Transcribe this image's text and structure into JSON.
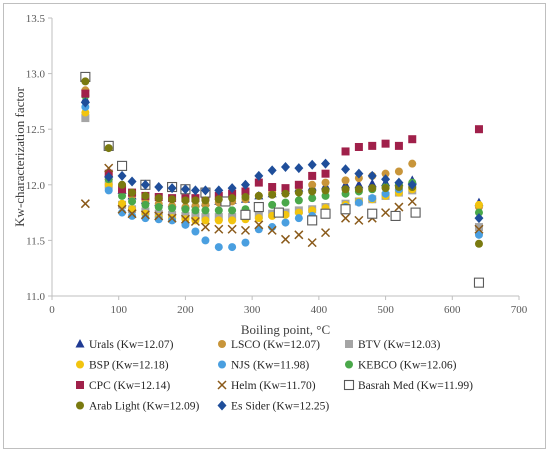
{
  "chart_data": {
    "type": "scatter",
    "title": "",
    "xlabel": "Boiling point, °C",
    "ylabel": "Kw-characterization factor",
    "xlim": [
      0,
      700
    ],
    "ylim": [
      11.0,
      13.5
    ],
    "x_ticks": [
      "0",
      "100",
      "200",
      "300",
      "400",
      "500",
      "600",
      "700"
    ],
    "y_ticks": [
      "11.0",
      "11.5",
      "12.0",
      "12.5",
      "13.0",
      "13.5"
    ],
    "grid": false,
    "legend_position": "bottom",
    "series": [
      {
        "name": "Urals (Kw=12.07)",
        "marker": "triangle",
        "color": "#1f3a93",
        "x": [
          50,
          85,
          105,
          120,
          140,
          160,
          180,
          200,
          215,
          230,
          250,
          270,
          290,
          310,
          330,
          350,
          370,
          390,
          410,
          440,
          460,
          480,
          500,
          520,
          540,
          640
        ],
        "y": [
          12.77,
          12.1,
          11.95,
          11.9,
          11.86,
          11.84,
          11.83,
          11.82,
          11.83,
          11.84,
          11.85,
          11.86,
          11.87,
          11.9,
          11.92,
          11.95,
          11.97,
          11.98,
          11.99,
          12.0,
          12.0,
          12.01,
          12.02,
          12.02,
          12.04,
          11.84
        ]
      },
      {
        "name": "LSCO (Kw=12.07)",
        "marker": "circle",
        "color": "#c8953a",
        "x": [
          50,
          85,
          105,
          120,
          140,
          160,
          180,
          200,
          215,
          230,
          250,
          270,
          290,
          310,
          330,
          350,
          370,
          390,
          410,
          440,
          460,
          480,
          500,
          520,
          540,
          640
        ],
        "y": [
          12.85,
          12.05,
          11.95,
          11.9,
          11.86,
          11.83,
          11.81,
          11.8,
          11.81,
          11.82,
          11.84,
          11.85,
          11.87,
          11.9,
          11.93,
          11.95,
          11.98,
          12.0,
          12.02,
          12.04,
          12.06,
          12.08,
          12.1,
          12.12,
          12.19,
          11.8
        ]
      },
      {
        "name": "BTV (Kw=12.03)",
        "marker": "square",
        "color": "#a5a5a5",
        "x": [
          50,
          85,
          105,
          120,
          140,
          160,
          180,
          200,
          215,
          230,
          250,
          270,
          290,
          310,
          330,
          350,
          370,
          390,
          410,
          440,
          460,
          480,
          500,
          520,
          540,
          640
        ],
        "y": [
          12.6,
          12.0,
          11.82,
          11.78,
          11.76,
          11.74,
          11.73,
          11.72,
          11.72,
          11.71,
          11.71,
          11.71,
          11.72,
          11.73,
          11.74,
          11.75,
          11.77,
          11.78,
          11.8,
          11.83,
          11.85,
          11.87,
          11.9,
          11.93,
          11.95,
          11.62
        ]
      },
      {
        "name": "BSP (Kw=12.18)",
        "marker": "circle",
        "color": "#f2c40f",
        "x": [
          50,
          85,
          105,
          120,
          140,
          160,
          180,
          200,
          215,
          230,
          250,
          270,
          290,
          310,
          330,
          350,
          370,
          390,
          410,
          440,
          460,
          480,
          500,
          520,
          540,
          640
        ],
        "y": [
          12.65,
          12.0,
          11.83,
          11.78,
          11.74,
          11.71,
          11.7,
          11.69,
          11.68,
          11.68,
          11.68,
          11.68,
          11.69,
          11.7,
          11.72,
          11.73,
          11.75,
          11.77,
          11.79,
          11.82,
          11.85,
          11.87,
          11.9,
          11.93,
          11.96,
          11.82
        ]
      },
      {
        "name": "NJS (Kw=11.98)",
        "marker": "circle",
        "color": "#4a9fe0",
        "x": [
          50,
          85,
          105,
          120,
          140,
          160,
          180,
          200,
          215,
          230,
          250,
          270,
          290,
          310,
          330,
          350,
          370,
          390,
          410,
          440,
          460,
          480,
          500,
          520,
          540,
          640
        ],
        "y": [
          12.7,
          11.95,
          11.75,
          11.72,
          11.7,
          11.69,
          11.68,
          11.64,
          11.58,
          11.5,
          11.44,
          11.44,
          11.48,
          11.6,
          11.62,
          11.66,
          11.7,
          11.72,
          11.75,
          11.8,
          11.84,
          11.88,
          11.92,
          11.96,
          12.0,
          11.55
        ]
      },
      {
        "name": "KEBCO (Kw=12.06)",
        "marker": "circle",
        "color": "#4aa84a",
        "x": [
          50,
          85,
          105,
          120,
          140,
          160,
          180,
          200,
          215,
          230,
          250,
          270,
          290,
          310,
          330,
          350,
          370,
          390,
          410,
          440,
          460,
          480,
          500,
          520,
          540,
          640
        ],
        "y": [
          12.8,
          12.05,
          11.9,
          11.85,
          11.82,
          11.8,
          11.79,
          11.78,
          11.77,
          11.77,
          11.77,
          11.77,
          11.78,
          11.8,
          11.82,
          11.84,
          11.86,
          11.88,
          11.9,
          11.92,
          11.94,
          11.96,
          11.98,
          12.0,
          12.02,
          11.75
        ]
      },
      {
        "name": "CPC (Kw=12.14)",
        "marker": "square",
        "color": "#a0204a",
        "x": [
          50,
          85,
          105,
          120,
          140,
          160,
          180,
          200,
          215,
          230,
          250,
          270,
          290,
          310,
          330,
          350,
          370,
          390,
          410,
          440,
          460,
          480,
          500,
          520,
          540,
          640
        ],
        "y": [
          12.82,
          12.1,
          11.96,
          11.93,
          11.9,
          11.89,
          11.88,
          11.88,
          11.88,
          11.89,
          11.9,
          11.92,
          11.94,
          12.02,
          11.98,
          11.97,
          12.0,
          12.08,
          12.1,
          12.3,
          12.34,
          12.35,
          12.37,
          12.35,
          12.41,
          12.5
        ]
      },
      {
        "name": "Helm (Kw=11.70)",
        "marker": "x",
        "color": "#8a5a1a",
        "x": [
          50,
          85,
          105,
          120,
          140,
          160,
          180,
          200,
          215,
          230,
          250,
          270,
          290,
          310,
          330,
          350,
          370,
          390,
          410,
          440,
          460,
          480,
          500,
          520,
          540,
          640
        ],
        "y": [
          11.83,
          12.15,
          11.78,
          11.74,
          11.73,
          11.72,
          11.7,
          11.69,
          11.67,
          11.62,
          11.6,
          11.6,
          11.59,
          11.64,
          11.59,
          11.51,
          11.55,
          11.48,
          11.57,
          11.7,
          11.68,
          11.7,
          11.75,
          11.8,
          11.85,
          11.6
        ]
      },
      {
        "name": "Basrah Med (Kw=11.99)",
        "marker": "square-open",
        "color": "#595959",
        "x": [
          50,
          85,
          105,
          140,
          180,
          200,
          230,
          260,
          290,
          310,
          340,
          390,
          410,
          440,
          480,
          515,
          545,
          640
        ],
        "y": [
          12.97,
          12.35,
          12.17,
          12.0,
          11.98,
          11.96,
          11.93,
          11.85,
          11.73,
          11.8,
          11.75,
          11.68,
          11.74,
          11.78,
          11.74,
          11.72,
          11.75,
          11.12
        ]
      },
      {
        "name": "Arab Light (Kw=12.09)",
        "marker": "circle",
        "color": "#7a7a10",
        "x": [
          50,
          85,
          105,
          120,
          140,
          160,
          180,
          200,
          215,
          230,
          250,
          270,
          290,
          310,
          330,
          350,
          370,
          390,
          410,
          440,
          460,
          480,
          500,
          520,
          540,
          640
        ],
        "y": [
          12.93,
          12.33,
          12.0,
          11.93,
          11.9,
          11.88,
          11.87,
          11.86,
          11.86,
          11.86,
          11.87,
          11.88,
          11.89,
          11.9,
          11.91,
          11.92,
          11.93,
          11.94,
          11.95,
          11.96,
          11.96,
          11.97,
          11.97,
          11.98,
          11.98,
          11.47
        ]
      },
      {
        "name": "Es Sider (Kw=12.25)",
        "marker": "diamond",
        "color": "#1f4e9a",
        "x": [
          50,
          85,
          105,
          120,
          140,
          160,
          180,
          200,
          215,
          230,
          250,
          270,
          290,
          310,
          330,
          350,
          370,
          390,
          410,
          440,
          460,
          480,
          500,
          520,
          540,
          640
        ],
        "y": [
          12.74,
          12.07,
          12.08,
          12.03,
          12.0,
          11.98,
          11.97,
          11.96,
          11.95,
          11.95,
          11.95,
          11.97,
          12.0,
          12.08,
          12.13,
          12.16,
          12.15,
          12.18,
          12.19,
          12.14,
          12.1,
          12.08,
          12.05,
          12.02,
          12.0,
          11.7
        ]
      }
    ]
  }
}
